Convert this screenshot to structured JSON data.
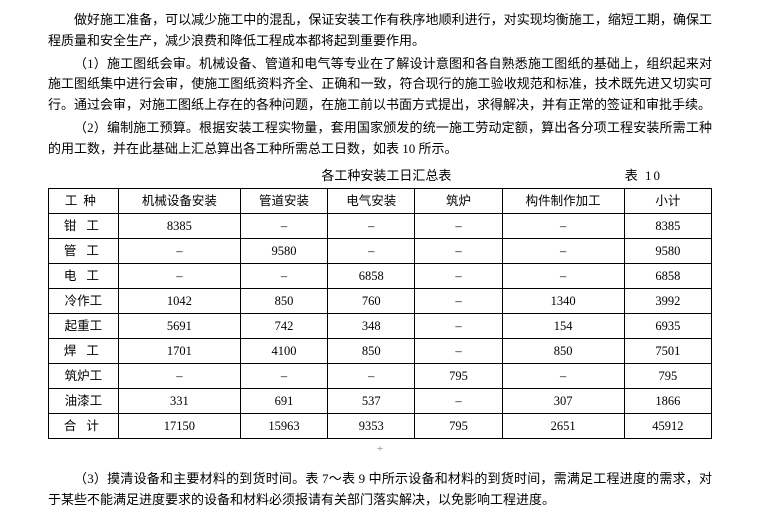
{
  "paragraphs": {
    "p1": "做好施工准备，可以减少施工中的混乱，保证安装工作有秩序地顺利进行，对实现均衡施工，缩短工期，确保工程质量和安全生产，减少浪费和降低工程成本都将起到重要作用。",
    "p2": "（1）施工图纸会审。机械设备、管道和电气等专业在了解设计意图和各自熟悉施工图纸的基础上，组织起来对施工图纸集中进行会审，使施工图纸资料齐全、正确和一致，符合现行的施工验收规范和标准，技术既先进又切实可行。通过会审，对施工图纸上存在的各种问题，在施工前以书面方式提出，求得解决，并有正常的签证和审批手续。",
    "p3": "（2）编制施工预算。根据安装工程实物量，套用国家颁发的统一施工劳动定额，算出各分项工程安装所需工种的用工数，并在此基础上汇总算出各工种所需总工日数，如表 10 所示。",
    "p4": "（3）摸清设备和主要材料的到货时间。表 7～表 9 中所示设备和材料的到货时间，需满足工程进度的需求，对于某些不能满足进度要求的设备和材料必须报请有关部门落实解决，以免影响工程进度。"
  },
  "table": {
    "caption_center": "各工种安装工日汇总表",
    "caption_right": "表 10",
    "headers": [
      "工种",
      "机械设备安装",
      "管道安装",
      "电气安装",
      "筑炉",
      "构件制作加工",
      "小计"
    ],
    "rows": [
      {
        "label": "钳工",
        "cells": [
          "8385",
          "–",
          "–",
          "–",
          "–",
          "8385"
        ],
        "spacing": "wide"
      },
      {
        "label": "管工",
        "cells": [
          "–",
          "9580",
          "–",
          "–",
          "–",
          "9580"
        ],
        "spacing": "wide"
      },
      {
        "label": "电工",
        "cells": [
          "–",
          "–",
          "6858",
          "–",
          "–",
          "6858"
        ],
        "spacing": "wide"
      },
      {
        "label": "冷作工",
        "cells": [
          "1042",
          "850",
          "760",
          "–",
          "1340",
          "3992"
        ],
        "spacing": "none"
      },
      {
        "label": "起重工",
        "cells": [
          "5691",
          "742",
          "348",
          "–",
          "154",
          "6935"
        ],
        "spacing": "none"
      },
      {
        "label": "焊工",
        "cells": [
          "1701",
          "4100",
          "850",
          "–",
          "850",
          "7501"
        ],
        "spacing": "wide"
      },
      {
        "label": "筑炉工",
        "cells": [
          "–",
          "–",
          "–",
          "795",
          "–",
          "795"
        ],
        "spacing": "none"
      },
      {
        "label": "油漆工",
        "cells": [
          "331",
          "691",
          "537",
          "–",
          "307",
          "1866"
        ],
        "spacing": "none"
      },
      {
        "label": "合计",
        "cells": [
          "17150",
          "15963",
          "9353",
          "795",
          "2651",
          "45912"
        ],
        "spacing": "wide"
      }
    ]
  },
  "below_marker": "+"
}
